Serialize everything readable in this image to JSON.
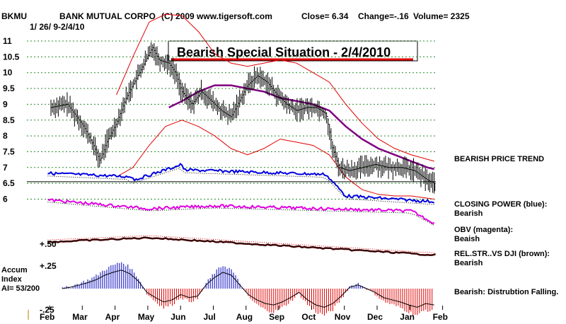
{
  "header": {
    "ticker": "BKMU",
    "company": "BANK MUTUAL CORPO",
    "copyright": "(C) 2009 www.tigersoft.com",
    "close": "Close=  6.34",
    "change": "Change=-.16",
    "volume": "Volume=  2325",
    "range": "1/ 26/ 9-2/4/10"
  },
  "banner": "Bearish Special Situation - 2/4/2010",
  "side_labels": {
    "trend": "BEARISH PRICE TREND",
    "closing_power_1": "CLOSING POWER (blue):",
    "closing_power_2": "Bearish",
    "obv_1": "OBV (magenta):",
    "obv_2": "Beaish",
    "relstr_1": "REL.STR..VS DJI (brown):",
    "relstr_2": "Bearish",
    "accum_1": "Accum",
    "accum_2": "Index",
    "accum_3": "AI= 53/200",
    "accum_status": "Bearish:  Distrubtion Falling."
  },
  "colors": {
    "price": "#000000",
    "bands": "#e00000",
    "ma": "#800080",
    "closing_power": "#0000e0",
    "obv": "#e000e0",
    "relstr": "#3a0000",
    "accum_pos": "#0000c0",
    "accum_neg": "#e00000",
    "grid": "#2a8a2a"
  },
  "chart_data": {
    "type": "line",
    "title": "BKMU  BANK MUTUAL CORPO",
    "y_ticks": [
      "11",
      "10.5",
      "10",
      "9.5",
      "9",
      "8.5",
      "8",
      "7.5",
      "7",
      "6.5",
      "6"
    ],
    "ylim": [
      6,
      11.1
    ],
    "x_months": [
      "Feb",
      "Mar",
      "Apr",
      "May",
      "Jun",
      "Jul",
      "Aug",
      "Sep",
      "Oct",
      "Nov",
      "Dec",
      "Jan",
      "Feb"
    ],
    "price_close": [
      {
        "m": 0.0,
        "v": 8.9
      },
      {
        "m": 0.5,
        "v": 9.0
      },
      {
        "m": 1.0,
        "v": 8.3
      },
      {
        "m": 1.3,
        "v": 7.7
      },
      {
        "m": 1.5,
        "v": 7.2
      },
      {
        "m": 1.7,
        "v": 7.8
      },
      {
        "m": 2.0,
        "v": 8.4
      },
      {
        "m": 2.3,
        "v": 9.2
      },
      {
        "m": 2.6,
        "v": 9.8
      },
      {
        "m": 2.9,
        "v": 10.4
      },
      {
        "m": 3.1,
        "v": 10.8
      },
      {
        "m": 3.3,
        "v": 10.4
      },
      {
        "m": 3.6,
        "v": 10.3
      },
      {
        "m": 3.8,
        "v": 10.0
      },
      {
        "m": 4.0,
        "v": 9.4
      },
      {
        "m": 4.3,
        "v": 9.0
      },
      {
        "m": 4.6,
        "v": 9.4
      },
      {
        "m": 4.9,
        "v": 9.1
      },
      {
        "m": 5.2,
        "v": 8.8
      },
      {
        "m": 5.5,
        "v": 8.6
      },
      {
        "m": 5.8,
        "v": 9.2
      },
      {
        "m": 6.0,
        "v": 9.6
      },
      {
        "m": 6.3,
        "v": 9.9
      },
      {
        "m": 6.6,
        "v": 9.7
      },
      {
        "m": 6.9,
        "v": 9.3
      },
      {
        "m": 7.2,
        "v": 9.0
      },
      {
        "m": 7.5,
        "v": 8.8
      },
      {
        "m": 7.8,
        "v": 8.9
      },
      {
        "m": 8.1,
        "v": 8.9
      },
      {
        "m": 8.4,
        "v": 8.7
      },
      {
        "m": 8.6,
        "v": 7.6
      },
      {
        "m": 8.8,
        "v": 7.0
      },
      {
        "m": 9.1,
        "v": 6.9
      },
      {
        "m": 9.5,
        "v": 7.0
      },
      {
        "m": 9.9,
        "v": 7.1
      },
      {
        "m": 10.3,
        "v": 7.0
      },
      {
        "m": 10.7,
        "v": 7.0
      },
      {
        "m": 11.1,
        "v": 6.9
      },
      {
        "m": 11.5,
        "v": 6.6
      },
      {
        "m": 11.7,
        "v": 6.5
      }
    ],
    "ma": [
      {
        "m": 3.6,
        "v": 8.9
      },
      {
        "m": 4.0,
        "v": 9.1
      },
      {
        "m": 4.5,
        "v": 9.4
      },
      {
        "m": 5.0,
        "v": 9.6
      },
      {
        "m": 5.5,
        "v": 9.6
      },
      {
        "m": 6.0,
        "v": 9.5
      },
      {
        "m": 6.5,
        "v": 9.4
      },
      {
        "m": 7.0,
        "v": 9.2
      },
      {
        "m": 7.5,
        "v": 9.1
      },
      {
        "m": 8.0,
        "v": 9.0
      },
      {
        "m": 8.5,
        "v": 8.8
      },
      {
        "m": 9.0,
        "v": 8.3
      },
      {
        "m": 9.5,
        "v": 7.9
      },
      {
        "m": 10.0,
        "v": 7.6
      },
      {
        "m": 10.5,
        "v": 7.4
      },
      {
        "m": 11.0,
        "v": 7.2
      },
      {
        "m": 11.5,
        "v": 7.0
      },
      {
        "m": 11.7,
        "v": 6.95
      }
    ],
    "upper_band": [
      {
        "m": 2.0,
        "v": 9.3
      },
      {
        "m": 2.5,
        "v": 10.5
      },
      {
        "m": 3.0,
        "v": 11.6
      },
      {
        "m": 3.5,
        "v": 12.0
      },
      {
        "m": 4.0,
        "v": 11.8
      },
      {
        "m": 4.5,
        "v": 11.3
      },
      {
        "m": 5.0,
        "v": 10.6
      },
      {
        "m": 5.5,
        "v": 10.3
      },
      {
        "m": 6.0,
        "v": 10.2
      },
      {
        "m": 6.5,
        "v": 10.3
      },
      {
        "m": 7.0,
        "v": 10.4
      },
      {
        "m": 7.5,
        "v": 10.3
      },
      {
        "m": 8.0,
        "v": 10.0
      },
      {
        "m": 8.5,
        "v": 9.7
      },
      {
        "m": 9.0,
        "v": 9.0
      },
      {
        "m": 9.5,
        "v": 8.4
      },
      {
        "m": 10.0,
        "v": 7.9
      },
      {
        "m": 10.5,
        "v": 7.6
      },
      {
        "m": 11.0,
        "v": 7.4
      },
      {
        "m": 11.7,
        "v": 7.2
      }
    ],
    "lower_band": [
      {
        "m": 2.0,
        "v": 6.7
      },
      {
        "m": 2.5,
        "v": 7.0
      },
      {
        "m": 3.0,
        "v": 7.7
      },
      {
        "m": 3.5,
        "v": 8.3
      },
      {
        "m": 4.0,
        "v": 8.5
      },
      {
        "m": 4.5,
        "v": 8.3
      },
      {
        "m": 5.0,
        "v": 8.0
      },
      {
        "m": 5.5,
        "v": 7.6
      },
      {
        "m": 6.0,
        "v": 7.4
      },
      {
        "m": 6.5,
        "v": 7.6
      },
      {
        "m": 7.0,
        "v": 7.9
      },
      {
        "m": 7.5,
        "v": 7.8
      },
      {
        "m": 8.0,
        "v": 7.7
      },
      {
        "m": 8.5,
        "v": 7.4
      },
      {
        "m": 9.0,
        "v": 6.7
      },
      {
        "m": 9.5,
        "v": 6.3
      },
      {
        "m": 10.0,
        "v": 6.15
      },
      {
        "m": 10.5,
        "v": 6.1
      },
      {
        "m": 11.0,
        "v": 6.1
      },
      {
        "m": 11.7,
        "v": 6.0
      }
    ],
    "accum_index": [
      0.0,
      0.02,
      0.05,
      0.08,
      0.12,
      0.18,
      0.22,
      0.25,
      0.2,
      0.1,
      -0.05,
      -0.12,
      -0.18,
      -0.15,
      -0.08,
      -0.12,
      -0.1,
      0.05,
      0.15,
      0.22,
      0.18,
      0.05,
      -0.08,
      -0.15,
      -0.2,
      -0.22,
      -0.18,
      -0.12,
      -0.05,
      -0.15,
      -0.22,
      -0.25,
      -0.2,
      -0.1,
      0.02,
      0.05,
      0.0,
      -0.05,
      -0.12,
      -0.15,
      -0.18,
      -0.22,
      -0.25,
      -0.2,
      -0.22
    ],
    "accum_ticks": [
      "+.25",
      "-.25"
    ],
    "obv_scale": "+.50"
  }
}
